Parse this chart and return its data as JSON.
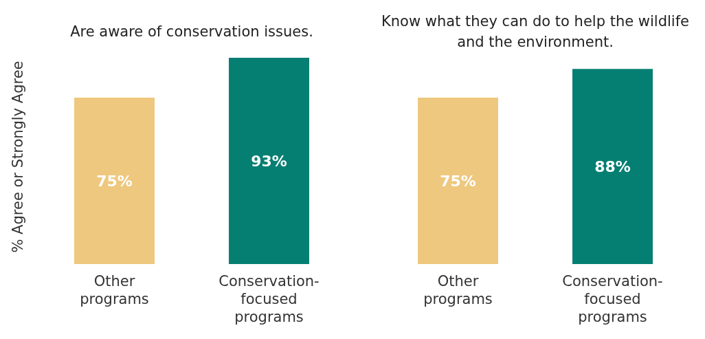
{
  "chart_data": [
    {
      "type": "bar",
      "title": "Are aware of conservation issues.",
      "ylabel": "% Agree or Strongly Agree",
      "categories": [
        "Other programs",
        "Conservation-focused programs"
      ],
      "values": [
        75,
        93
      ],
      "colors": [
        "#eec87e",
        "#067f73"
      ],
      "data_labels": true,
      "value_labels": [
        "75%",
        "93%"
      ]
    },
    {
      "type": "bar",
      "title": "Know what they can do to help the wildlife and the environment.",
      "categories": [
        "Other programs",
        "Conservation-focused programs"
      ],
      "values": [
        75,
        88
      ],
      "colors": [
        "#eec87e",
        "#067f73"
      ],
      "data_labels": true,
      "value_labels": [
        "75%",
        "88%"
      ]
    }
  ]
}
